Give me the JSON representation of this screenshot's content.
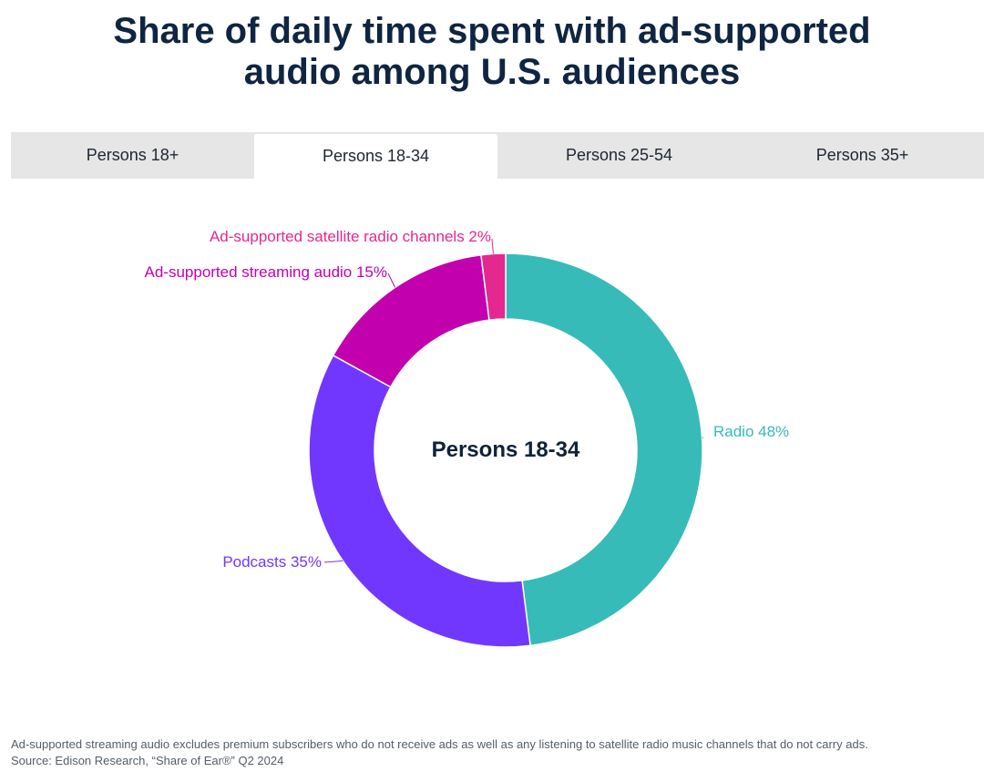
{
  "title": {
    "line1": "Share of daily time spent with ad-supported",
    "line2": "audio among U.S. audiences"
  },
  "tabs": [
    {
      "label": "Persons 18+",
      "active": false
    },
    {
      "label": "Persons 18-34",
      "active": true
    },
    {
      "label": "Persons 25-54",
      "active": false
    },
    {
      "label": "Persons 35+",
      "active": false
    }
  ],
  "chart_data": {
    "type": "pie",
    "subtype": "donut",
    "center_label": "Persons 18-34",
    "slices": [
      {
        "name": "Radio",
        "value": 48,
        "label": "Radio 48%",
        "color": "#36bbb9",
        "label_color": "#36bbb9"
      },
      {
        "name": "Podcasts",
        "value": 35,
        "label": "Podcasts 35%",
        "color": "#7237ff",
        "label_color": "#7237ff"
      },
      {
        "name": "Ad-supported streaming audio",
        "value": 15,
        "label": "Ad-supported streaming audio 15%",
        "color": "#c300ae",
        "label_color": "#c300ae"
      },
      {
        "name": "Ad-supported satellite radio channels",
        "value": 2,
        "label": "Ad-supported satellite radio channels 2%",
        "color": "#e4288f",
        "label_color": "#e4288f"
      }
    ]
  },
  "footer": {
    "note": "Ad-supported streaming audio excludes premium subscribers who do not receive ads as well as any listening to satellite radio music channels that do not carry ads.",
    "source": "Source: Edison Research, “Share of Ear®” Q2 2024"
  }
}
